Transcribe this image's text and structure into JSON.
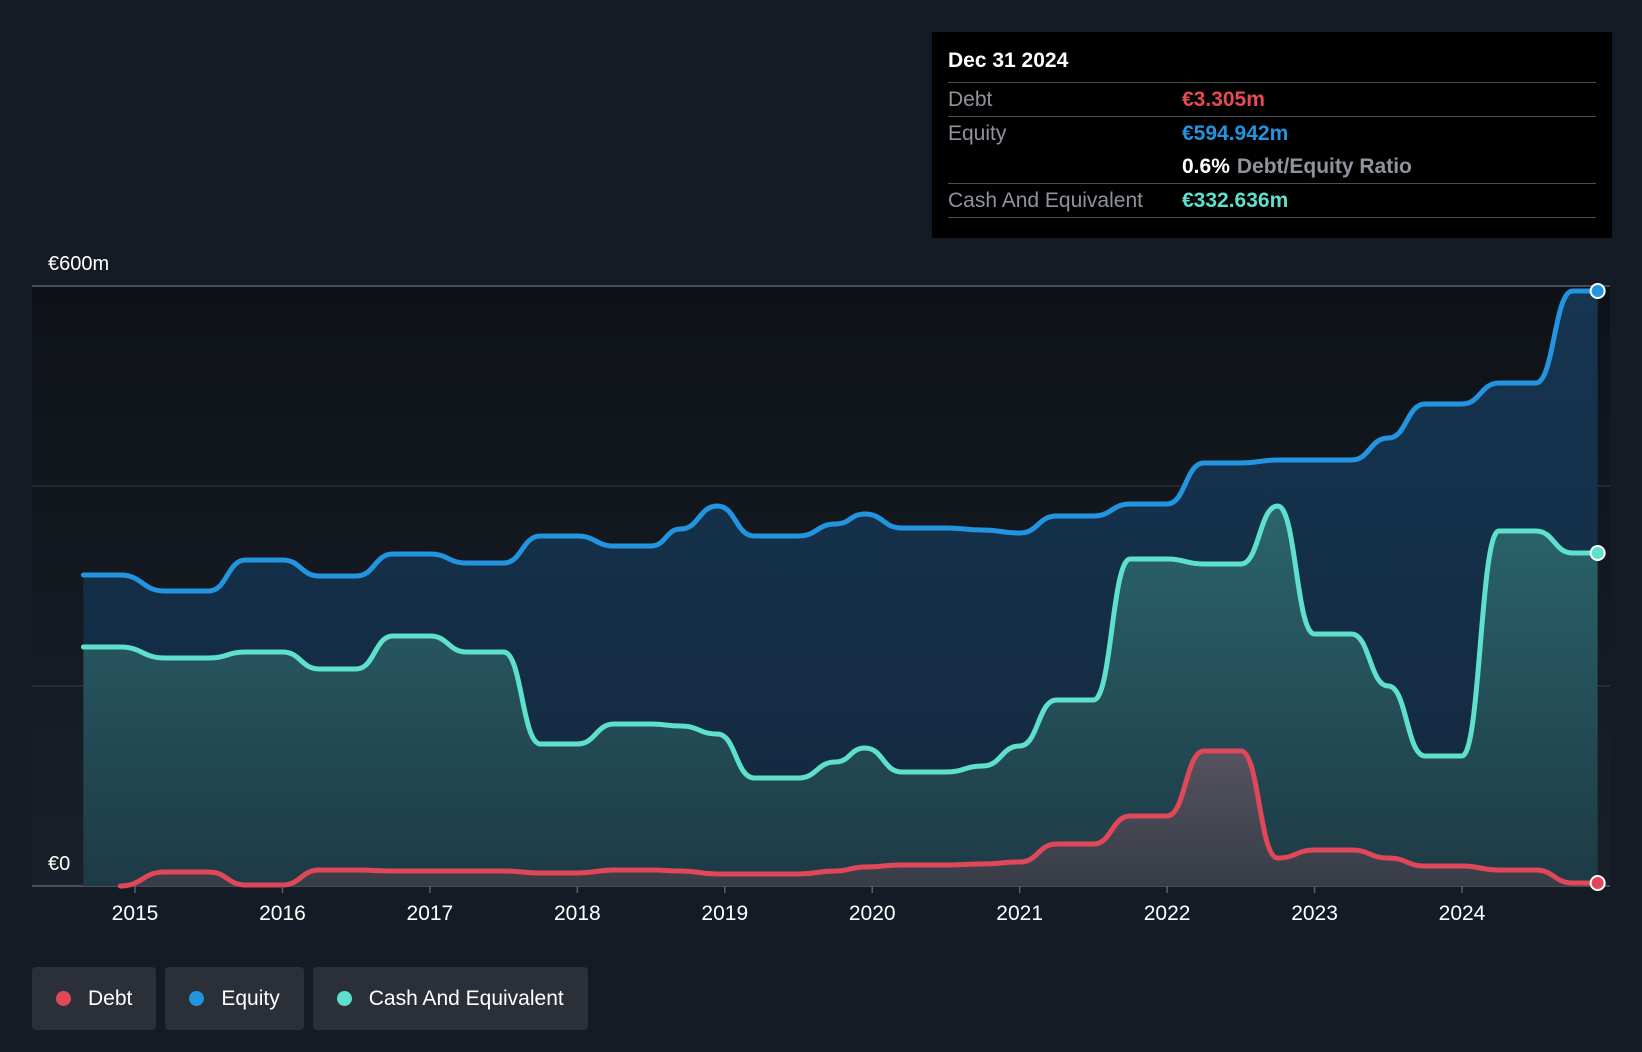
{
  "chart_data": {
    "type": "area",
    "y_axis": {
      "min": 0,
      "max": 600,
      "top_label": "€600m",
      "bottom_label": "€0",
      "gridlines": [
        0,
        200,
        400,
        600
      ]
    },
    "x_axis": {
      "min": 2014.65,
      "max": 2024.92,
      "ticks": [
        "2015",
        "2016",
        "2017",
        "2018",
        "2019",
        "2020",
        "2021",
        "2022",
        "2023",
        "2024"
      ]
    },
    "series": [
      {
        "name": "Equity",
        "color": "#2394e0",
        "points": [
          [
            2014.65,
            311
          ],
          [
            2014.9,
            311
          ],
          [
            2015.2,
            295
          ],
          [
            2015.5,
            295
          ],
          [
            2015.75,
            326
          ],
          [
            2016.0,
            326
          ],
          [
            2016.25,
            310
          ],
          [
            2016.5,
            310
          ],
          [
            2016.75,
            332
          ],
          [
            2017.0,
            332
          ],
          [
            2017.25,
            323
          ],
          [
            2017.5,
            323
          ],
          [
            2017.75,
            350
          ],
          [
            2018.0,
            350
          ],
          [
            2018.25,
            340
          ],
          [
            2018.5,
            340
          ],
          [
            2018.7,
            357
          ],
          [
            2018.95,
            380
          ],
          [
            2019.2,
            350
          ],
          [
            2019.5,
            350
          ],
          [
            2019.75,
            362
          ],
          [
            2019.95,
            372
          ],
          [
            2020.2,
            358
          ],
          [
            2020.5,
            358
          ],
          [
            2020.75,
            356
          ],
          [
            2021.0,
            353
          ],
          [
            2021.25,
            370
          ],
          [
            2021.5,
            370
          ],
          [
            2021.75,
            382
          ],
          [
            2022.0,
            382
          ],
          [
            2022.25,
            423
          ],
          [
            2022.5,
            423
          ],
          [
            2022.75,
            426
          ],
          [
            2023.0,
            426
          ],
          [
            2023.25,
            426
          ],
          [
            2023.5,
            448
          ],
          [
            2023.75,
            482
          ],
          [
            2024.0,
            482
          ],
          [
            2024.25,
            503
          ],
          [
            2024.5,
            503
          ],
          [
            2024.75,
            595
          ],
          [
            2024.92,
            595
          ]
        ]
      },
      {
        "name": "Cash And Equivalent",
        "color": "#5ee0cc",
        "points": [
          [
            2014.65,
            239
          ],
          [
            2014.9,
            239
          ],
          [
            2015.2,
            228
          ],
          [
            2015.5,
            228
          ],
          [
            2015.75,
            234
          ],
          [
            2016.0,
            234
          ],
          [
            2016.25,
            217
          ],
          [
            2016.5,
            217
          ],
          [
            2016.75,
            250
          ],
          [
            2017.0,
            250
          ],
          [
            2017.25,
            234
          ],
          [
            2017.5,
            234
          ],
          [
            2017.75,
            142
          ],
          [
            2018.0,
            142
          ],
          [
            2018.25,
            162
          ],
          [
            2018.5,
            162
          ],
          [
            2018.7,
            160
          ],
          [
            2018.95,
            152
          ],
          [
            2019.2,
            108
          ],
          [
            2019.5,
            108
          ],
          [
            2019.75,
            124
          ],
          [
            2019.95,
            138
          ],
          [
            2020.2,
            114
          ],
          [
            2020.5,
            114
          ],
          [
            2020.75,
            120
          ],
          [
            2021.0,
            140
          ],
          [
            2021.25,
            186
          ],
          [
            2021.5,
            186
          ],
          [
            2021.75,
            327
          ],
          [
            2022.0,
            327
          ],
          [
            2022.25,
            322
          ],
          [
            2022.5,
            322
          ],
          [
            2022.75,
            380
          ],
          [
            2023.0,
            252
          ],
          [
            2023.25,
            252
          ],
          [
            2023.5,
            200
          ],
          [
            2023.75,
            130
          ],
          [
            2024.0,
            130
          ],
          [
            2024.25,
            355
          ],
          [
            2024.5,
            355
          ],
          [
            2024.75,
            333
          ],
          [
            2024.92,
            333
          ]
        ]
      },
      {
        "name": "Debt",
        "color": "#e0485a",
        "points": [
          [
            2014.9,
            0
          ],
          [
            2015.2,
            14
          ],
          [
            2015.5,
            14
          ],
          [
            2015.75,
            1
          ],
          [
            2016.0,
            1
          ],
          [
            2016.25,
            16
          ],
          [
            2016.5,
            16
          ],
          [
            2016.75,
            15
          ],
          [
            2017.0,
            15
          ],
          [
            2017.25,
            15
          ],
          [
            2017.5,
            15
          ],
          [
            2017.75,
            13
          ],
          [
            2018.0,
            13
          ],
          [
            2018.25,
            16
          ],
          [
            2018.5,
            16
          ],
          [
            2018.7,
            15
          ],
          [
            2018.95,
            12
          ],
          [
            2019.2,
            12
          ],
          [
            2019.5,
            12
          ],
          [
            2019.75,
            15
          ],
          [
            2019.95,
            19
          ],
          [
            2020.2,
            21
          ],
          [
            2020.5,
            21
          ],
          [
            2020.75,
            22
          ],
          [
            2021.0,
            24
          ],
          [
            2021.25,
            42
          ],
          [
            2021.5,
            42
          ],
          [
            2021.75,
            70
          ],
          [
            2022.0,
            70
          ],
          [
            2022.25,
            135
          ],
          [
            2022.5,
            135
          ],
          [
            2022.75,
            28
          ],
          [
            2023.0,
            36
          ],
          [
            2023.25,
            36
          ],
          [
            2023.5,
            28
          ],
          [
            2023.75,
            20
          ],
          [
            2024.0,
            20
          ],
          [
            2024.25,
            16
          ],
          [
            2024.5,
            16
          ],
          [
            2024.75,
            3
          ],
          [
            2024.92,
            3
          ]
        ]
      }
    ]
  },
  "tooltip": {
    "date": "Dec 31 2024",
    "debt_label": "Debt",
    "debt_value": "€3.305m",
    "debt_color": "#e64a53",
    "equity_label": "Equity",
    "equity_value": "€594.942m",
    "equity_color": "#2394e0",
    "ratio_value": "0.6%",
    "ratio_label": "Debt/Equity Ratio",
    "cash_label": "Cash And Equivalent",
    "cash_value": "€332.636m",
    "cash_color": "#5ee0cc"
  },
  "legend": [
    {
      "label": "Debt",
      "color": "#e0485a"
    },
    {
      "label": "Equity",
      "color": "#2394e0"
    },
    {
      "label": "Cash And Equivalent",
      "color": "#5ee0cc"
    }
  ]
}
